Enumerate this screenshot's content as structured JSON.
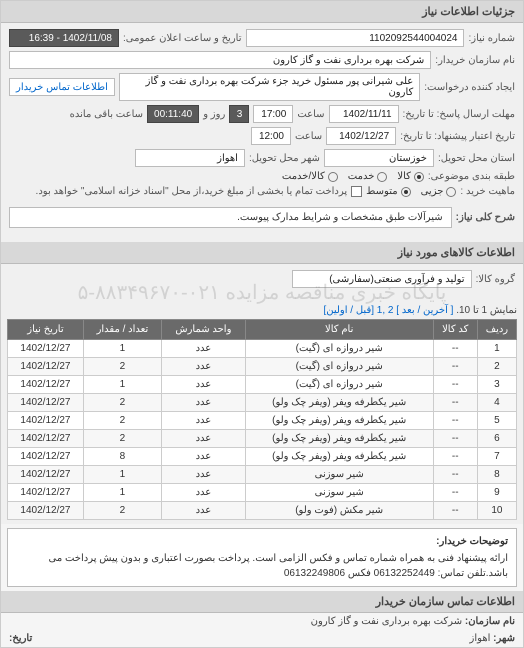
{
  "header": {
    "title": "جزئیات اطلاعات نیاز"
  },
  "form": {
    "req_no_label": "شماره نیاز:",
    "req_no": "1102092544004024",
    "announce_label": "تاریخ و ساعت اعلان عمومی:",
    "announce_val": "1402/11/08 - 16:39",
    "buyer_label": "نام سازمان خریدار:",
    "buyer_val": "شرکت بهره برداری نفت و گاز کارون",
    "requester_label": "ایجاد کننده درخواست:",
    "requester_val": "علی شیرانی پور مسئول خرید جزء شرکت بهره برداری نفت و گاز کارون",
    "contact_btn": "اطلاعات تماس خریدار",
    "deadline_send_label": "مهلت ارسال پاسخ: تا تاریخ:",
    "deadline_send_date": "1402/11/11",
    "time_label": "ساعت",
    "deadline_send_time": "17:00",
    "remaining_days": "3",
    "day_and": "روز و",
    "remaining_time": "00:11:40",
    "remaining_suffix": "ساعت باقی مانده",
    "credit_label": "تاریخ اعتبار پیشنهاد: تا تاریخ:",
    "credit_date": "1402/12/27",
    "credit_time": "12:00",
    "province_label": "استان محل تحویل:",
    "province_val": "خوزستان",
    "city_label": "شهر محل تحویل:",
    "city_val": "اهواز",
    "pack_label": "طبقه بندی موضوعی:",
    "pack_options": [
      {
        "label": "کالا",
        "checked": true
      },
      {
        "label": "خدمت",
        "checked": false
      },
      {
        "label": "کالا/خدمت",
        "checked": false
      }
    ],
    "buy_nature_label": "ماهیت خرید :",
    "buy_options": [
      {
        "label": "جزیی",
        "checked": false
      },
      {
        "label": "متوسط",
        "checked": true
      }
    ],
    "pay_note": "پرداخت تمام یا بخشی از مبلغ خرید،از محل \"اسناد خزانه اسلامی\" خواهد بود.",
    "desc_label": "شرح کلی نیاز:",
    "desc_val": "شیرآلات طبق مشخصات و شرایط مدارک پیوست."
  },
  "items_header": "اطلاعات کالاهای مورد نیاز",
  "group_label": "گروه کالا:",
  "group_val": "تولید و فرآوری صنعتی(سفارشی)",
  "pager": {
    "prefix": "نمایش 1 تا 10.",
    "links": "[ آخرین / بعد ] 2 ,1 [قبل / اولین]"
  },
  "columns": [
    "ردیف",
    "کد کالا",
    "نام کالا",
    "واحد شمارش",
    "تعداد / مقدار",
    "تاریخ نیاز"
  ],
  "rows": [
    [
      "1",
      "--",
      "شیر دروازه ای (گیت)",
      "عدد",
      "1",
      "1402/12/27"
    ],
    [
      "2",
      "--",
      "شیر دروازه ای (گیت)",
      "عدد",
      "2",
      "1402/12/27"
    ],
    [
      "3",
      "--",
      "شیر دروازه ای (گیت)",
      "عدد",
      "1",
      "1402/12/27"
    ],
    [
      "4",
      "--",
      "شیر یکطرفه ویفر (ویفر چک ولو)",
      "عدد",
      "2",
      "1402/12/27"
    ],
    [
      "5",
      "--",
      "شیر یکطرفه ویفر (ویفر چک ولو)",
      "عدد",
      "2",
      "1402/12/27"
    ],
    [
      "6",
      "--",
      "شیر یکطرفه ویفر (ویفر چک ولو)",
      "عدد",
      "2",
      "1402/12/27"
    ],
    [
      "7",
      "--",
      "شیر یکطرفه ویفر (ویفر چک ولو)",
      "عدد",
      "8",
      "1402/12/27"
    ],
    [
      "8",
      "--",
      "شیر سوزنی",
      "عدد",
      "1",
      "1402/12/27"
    ],
    [
      "9",
      "--",
      "شیر سوزنی",
      "عدد",
      "1",
      "1402/12/27"
    ],
    [
      "10",
      "--",
      "شیر مکش (فوت ولو)",
      "عدد",
      "2",
      "1402/12/27"
    ]
  ],
  "note": {
    "title": "توضیحات خریدار:",
    "body": "ارائه پیشنهاد فنی به همراه شماره تماس و فکس الزامی است. پرداخت بصورت اعتباری و بدون پیش پرداخت می باشد.تلفن تماس: 06132252449 فکس 06132249806"
  },
  "footer": {
    "section": "اطلاعات تماس سازمان خریدار",
    "org_label": "نام سازمان:",
    "org_val": "شرکت بهره برداری نفت و گاز کارون",
    "city_label": "شهر:",
    "city_val": "اهواز",
    "date_label": "تاریخ:"
  },
  "watermark": "پایگاه خبری مناقصه مزایده\n۰۲۱-۸۸۳۴۹۶۷۰-۵"
}
